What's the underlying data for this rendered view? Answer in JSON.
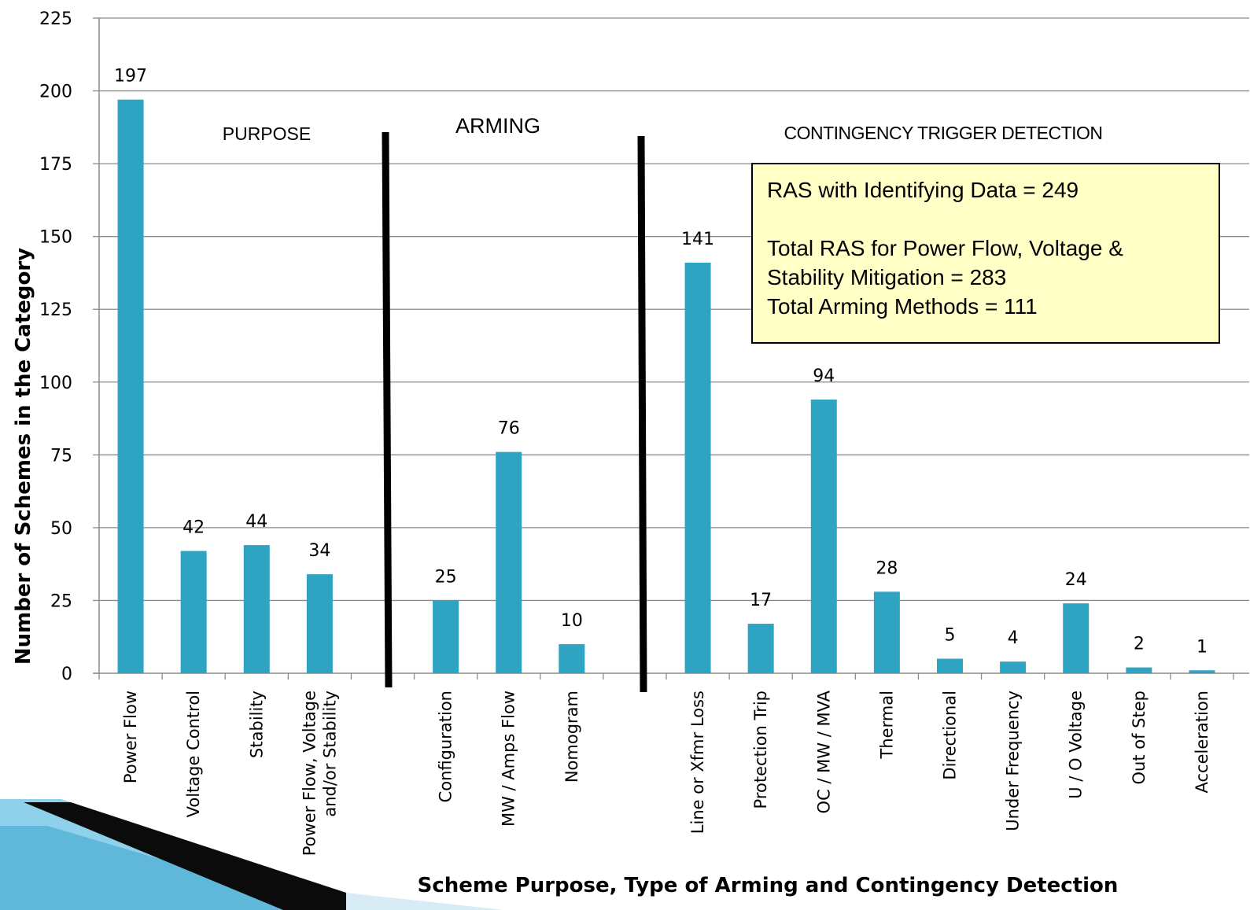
{
  "chart_data": {
    "type": "bar",
    "title": "",
    "xlabel": "Scheme Purpose, Type  of  Arming and Contingency Detection",
    "ylabel": "Number  of  Schemes  in the Category",
    "ylim": [
      0,
      225
    ],
    "yticks": [
      0,
      25,
      50,
      75,
      100,
      125,
      150,
      175,
      200,
      225
    ],
    "grid": true,
    "bar_color": "#2ea3c2",
    "categories": [
      "Power Flow",
      "Voltage Control",
      "Stability",
      "Power Flow, Voltage and/or Stability",
      "",
      "Configuration",
      "MW / Amps Flow",
      "Nomogram",
      "",
      "Line or Xfmr Loss",
      "Protection Trip",
      "OC / MW / MVA",
      "Thermal",
      "Directional",
      "Under Frequency",
      "U / O Voltage",
      "Out of Step",
      "Acceleration"
    ],
    "category_lines": [
      [
        "Power Flow"
      ],
      [
        "Voltage Control"
      ],
      [
        "Stability"
      ],
      [
        "Power Flow, Voltage",
        "and/or Stability"
      ],
      [],
      [
        "Configuration"
      ],
      [
        "MW / Amps Flow"
      ],
      [
        "Nomogram"
      ],
      [],
      [
        "Line or Xfmr Loss"
      ],
      [
        "Protection Trip"
      ],
      [
        "OC / MW / MVA"
      ],
      [
        "Thermal"
      ],
      [
        "Directional"
      ],
      [
        "Under Frequency"
      ],
      [
        "U / O Voltage"
      ],
      [
        "Out of Step"
      ],
      [
        "Acceleration"
      ]
    ],
    "values": [
      197,
      42,
      44,
      34,
      null,
      25,
      76,
      10,
      null,
      141,
      17,
      94,
      28,
      5,
      4,
      24,
      2,
      1
    ],
    "sections": [
      {
        "label": "PURPOSE"
      },
      {
        "label": "ARMING"
      },
      {
        "label": "CONTINGENCY TRIGGER DETECTION"
      }
    ]
  },
  "info_box": {
    "line1": "RAS with Identifying  Data = 249",
    "line2": "Total RAS for Power Flow, Voltage &",
    "line3": "Stability Mitigation = 283",
    "line4": "Total Arming Methods = 111"
  }
}
